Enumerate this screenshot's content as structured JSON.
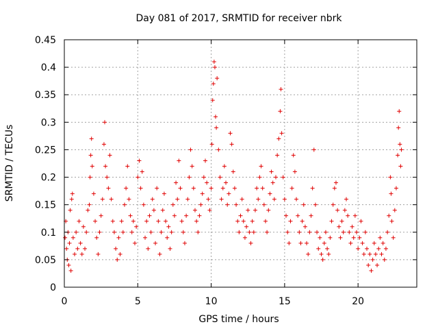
{
  "chart_data": {
    "type": "scatter",
    "title": "Day 081 of 2017, SRMTID for receiver nbrk",
    "xlabel": "GPS time / hours",
    "ylabel": "SRMTID / TECUs",
    "xlim": [
      0,
      24
    ],
    "ylim": [
      0,
      0.45
    ],
    "x_ticks": [
      0,
      5,
      10,
      15,
      20
    ],
    "x_tick_labels": [
      "0",
      "5",
      "10",
      "15",
      "20"
    ],
    "y_ticks": [
      0,
      0.05,
      0.1,
      0.15,
      0.2,
      0.25,
      0.3,
      0.35,
      0.4,
      0.45
    ],
    "y_tick_labels": [
      "0",
      "0.05",
      "0.1",
      "0.15",
      "0.2",
      "0.25",
      "0.3",
      "0.35",
      "0.4",
      "0.45"
    ],
    "grid": true,
    "marker": "+",
    "color": "#e00000",
    "series": [
      {
        "name": "SRMTID",
        "points": [
          [
            0.05,
            0.09
          ],
          [
            0.1,
            0.12
          ],
          [
            0.15,
            0.07
          ],
          [
            0.2,
            0.05
          ],
          [
            0.25,
            0.1
          ],
          [
            0.3,
            0.04
          ],
          [
            0.35,
            0.08
          ],
          [
            0.4,
            0.14
          ],
          [
            0.45,
            0.03
          ],
          [
            0.5,
            0.16
          ],
          [
            0.55,
            0.17
          ],
          [
            0.6,
            0.09
          ],
          [
            0.7,
            0.06
          ],
          [
            0.8,
            0.1
          ],
          [
            0.9,
            0.07
          ],
          [
            1.0,
            0.12
          ],
          [
            1.1,
            0.08
          ],
          [
            1.2,
            0.06
          ],
          [
            1.3,
            0.11
          ],
          [
            1.4,
            0.07
          ],
          [
            1.5,
            0.1
          ],
          [
            1.6,
            0.14
          ],
          [
            1.7,
            0.15
          ],
          [
            1.75,
            0.2
          ],
          [
            1.8,
            0.24
          ],
          [
            1.85,
            0.27
          ],
          [
            1.9,
            0.22
          ],
          [
            2.0,
            0.17
          ],
          [
            2.1,
            0.12
          ],
          [
            2.2,
            0.09
          ],
          [
            2.3,
            0.06
          ],
          [
            2.4,
            0.1
          ],
          [
            2.5,
            0.13
          ],
          [
            2.6,
            0.16
          ],
          [
            2.7,
            0.26
          ],
          [
            2.75,
            0.3
          ],
          [
            2.8,
            0.22
          ],
          [
            2.9,
            0.2
          ],
          [
            3.0,
            0.18
          ],
          [
            3.1,
            0.24
          ],
          [
            3.2,
            0.16
          ],
          [
            3.3,
            0.12
          ],
          [
            3.4,
            0.1
          ],
          [
            3.5,
            0.07
          ],
          [
            3.6,
            0.05
          ],
          [
            3.7,
            0.09
          ],
          [
            3.8,
            0.06
          ],
          [
            3.9,
            0.12
          ],
          [
            4.0,
            0.1
          ],
          [
            4.1,
            0.15
          ],
          [
            4.2,
            0.18
          ],
          [
            4.3,
            0.22
          ],
          [
            4.4,
            0.16
          ],
          [
            4.5,
            0.13
          ],
          [
            4.6,
            0.1
          ],
          [
            4.7,
            0.12
          ],
          [
            4.8,
            0.08
          ],
          [
            4.9,
            0.11
          ],
          [
            5.0,
            0.2
          ],
          [
            5.1,
            0.23
          ],
          [
            5.2,
            0.18
          ],
          [
            5.3,
            0.21
          ],
          [
            5.4,
            0.15
          ],
          [
            5.5,
            0.09
          ],
          [
            5.6,
            0.12
          ],
          [
            5.7,
            0.07
          ],
          [
            5.8,
            0.13
          ],
          [
            5.9,
            0.1
          ],
          [
            6.0,
            0.16
          ],
          [
            6.1,
            0.14
          ],
          [
            6.2,
            0.08
          ],
          [
            6.3,
            0.18
          ],
          [
            6.4,
            0.12
          ],
          [
            6.5,
            0.06
          ],
          [
            6.6,
            0.1
          ],
          [
            6.7,
            0.14
          ],
          [
            6.8,
            0.17
          ],
          [
            6.9,
            0.12
          ],
          [
            7.0,
            0.09
          ],
          [
            7.1,
            0.11
          ],
          [
            7.2,
            0.07
          ],
          [
            7.3,
            0.1
          ],
          [
            7.4,
            0.15
          ],
          [
            7.5,
            0.13
          ],
          [
            7.6,
            0.19
          ],
          [
            7.7,
            0.16
          ],
          [
            7.8,
            0.23
          ],
          [
            7.9,
            0.18
          ],
          [
            8.0,
            0.12
          ],
          [
            8.1,
            0.1
          ],
          [
            8.2,
            0.08
          ],
          [
            8.3,
            0.13
          ],
          [
            8.4,
            0.16
          ],
          [
            8.5,
            0.2
          ],
          [
            8.6,
            0.25
          ],
          [
            8.7,
            0.22
          ],
          [
            8.8,
            0.18
          ],
          [
            8.9,
            0.14
          ],
          [
            9.0,
            0.12
          ],
          [
            9.1,
            0.1
          ],
          [
            9.2,
            0.13
          ],
          [
            9.3,
            0.15
          ],
          [
            9.4,
            0.17
          ],
          [
            9.5,
            0.2
          ],
          [
            9.6,
            0.23
          ],
          [
            9.7,
            0.19
          ],
          [
            9.8,
            0.16
          ],
          [
            9.9,
            0.14
          ],
          [
            10.0,
            0.18
          ],
          [
            10.05,
            0.26
          ],
          [
            10.1,
            0.34
          ],
          [
            10.15,
            0.37
          ],
          [
            10.2,
            0.41
          ],
          [
            10.25,
            0.4
          ],
          [
            10.3,
            0.31
          ],
          [
            10.35,
            0.29
          ],
          [
            10.4,
            0.38
          ],
          [
            10.5,
            0.25
          ],
          [
            10.6,
            0.2
          ],
          [
            10.7,
            0.16
          ],
          [
            10.8,
            0.18
          ],
          [
            10.9,
            0.22
          ],
          [
            11.0,
            0.19
          ],
          [
            11.1,
            0.15
          ],
          [
            11.2,
            0.17
          ],
          [
            11.3,
            0.28
          ],
          [
            11.4,
            0.26
          ],
          [
            11.5,
            0.21
          ],
          [
            11.6,
            0.18
          ],
          [
            11.7,
            0.15
          ],
          [
            11.8,
            0.12
          ],
          [
            11.9,
            0.1
          ],
          [
            12.0,
            0.13
          ],
          [
            12.1,
            0.16
          ],
          [
            12.2,
            0.12
          ],
          [
            12.3,
            0.09
          ],
          [
            12.4,
            0.11
          ],
          [
            12.5,
            0.14
          ],
          [
            12.6,
            0.1
          ],
          [
            12.7,
            0.08
          ],
          [
            12.8,
            0.12
          ],
          [
            12.9,
            0.1
          ],
          [
            13.0,
            0.14
          ],
          [
            13.1,
            0.18
          ],
          [
            13.2,
            0.16
          ],
          [
            13.3,
            0.2
          ],
          [
            13.4,
            0.22
          ],
          [
            13.5,
            0.18
          ],
          [
            13.6,
            0.15
          ],
          [
            13.7,
            0.12
          ],
          [
            13.8,
            0.1
          ],
          [
            13.9,
            0.14
          ],
          [
            14.0,
            0.17
          ],
          [
            14.1,
            0.21
          ],
          [
            14.2,
            0.19
          ],
          [
            14.3,
            0.16
          ],
          [
            14.4,
            0.2
          ],
          [
            14.5,
            0.24
          ],
          [
            14.6,
            0.27
          ],
          [
            14.7,
            0.32
          ],
          [
            14.75,
            0.36
          ],
          [
            14.8,
            0.28
          ],
          [
            14.9,
            0.2
          ],
          [
            15.0,
            0.16
          ],
          [
            15.1,
            0.13
          ],
          [
            15.2,
            0.1
          ],
          [
            15.3,
            0.08
          ],
          [
            15.4,
            0.12
          ],
          [
            15.5,
            0.18
          ],
          [
            15.6,
            0.24
          ],
          [
            15.7,
            0.21
          ],
          [
            15.8,
            0.16
          ],
          [
            15.9,
            0.13
          ],
          [
            16.0,
            0.1
          ],
          [
            16.1,
            0.08
          ],
          [
            16.2,
            0.12
          ],
          [
            16.3,
            0.15
          ],
          [
            16.4,
            0.11
          ],
          [
            16.5,
            0.08
          ],
          [
            16.6,
            0.06
          ],
          [
            16.7,
            0.1
          ],
          [
            16.8,
            0.13
          ],
          [
            16.9,
            0.18
          ],
          [
            17.0,
            0.25
          ],
          [
            17.1,
            0.15
          ],
          [
            17.2,
            0.1
          ],
          [
            17.3,
            0.07
          ],
          [
            17.4,
            0.09
          ],
          [
            17.5,
            0.06
          ],
          [
            17.6,
            0.05
          ],
          [
            17.7,
            0.08
          ],
          [
            17.8,
            0.1
          ],
          [
            17.9,
            0.07
          ],
          [
            18.0,
            0.06
          ],
          [
            18.1,
            0.09
          ],
          [
            18.2,
            0.12
          ],
          [
            18.3,
            0.15
          ],
          [
            18.4,
            0.18
          ],
          [
            18.5,
            0.19
          ],
          [
            18.6,
            0.14
          ],
          [
            18.7,
            0.11
          ],
          [
            18.8,
            0.09
          ],
          [
            18.9,
            0.12
          ],
          [
            19.0,
            0.1
          ],
          [
            19.1,
            0.14
          ],
          [
            19.2,
            0.16
          ],
          [
            19.3,
            0.13
          ],
          [
            19.4,
            0.1
          ],
          [
            19.5,
            0.08
          ],
          [
            19.6,
            0.11
          ],
          [
            19.7,
            0.09
          ],
          [
            19.8,
            0.13
          ],
          [
            19.9,
            0.1
          ],
          [
            20.0,
            0.07
          ],
          [
            20.1,
            0.09
          ],
          [
            20.2,
            0.12
          ],
          [
            20.3,
            0.08
          ],
          [
            20.4,
            0.06
          ],
          [
            20.5,
            0.1
          ],
          [
            20.6,
            0.07
          ],
          [
            20.7,
            0.04
          ],
          [
            20.8,
            0.06
          ],
          [
            20.9,
            0.03
          ],
          [
            21.0,
            0.05
          ],
          [
            21.1,
            0.08
          ],
          [
            21.2,
            0.06
          ],
          [
            21.3,
            0.04
          ],
          [
            21.4,
            0.07
          ],
          [
            21.5,
            0.09
          ],
          [
            21.6,
            0.06
          ],
          [
            21.7,
            0.08
          ],
          [
            21.8,
            0.05
          ],
          [
            21.9,
            0.07
          ],
          [
            22.0,
            0.1
          ],
          [
            22.1,
            0.13
          ],
          [
            22.2,
            0.2
          ],
          [
            22.25,
            0.17
          ],
          [
            22.3,
            0.12
          ],
          [
            22.4,
            0.09
          ],
          [
            22.5,
            0.14
          ],
          [
            22.6,
            0.18
          ],
          [
            22.7,
            0.24
          ],
          [
            22.75,
            0.29
          ],
          [
            22.8,
            0.32
          ],
          [
            22.85,
            0.26
          ],
          [
            22.9,
            0.22
          ],
          [
            22.95,
            0.25
          ]
        ]
      }
    ]
  }
}
